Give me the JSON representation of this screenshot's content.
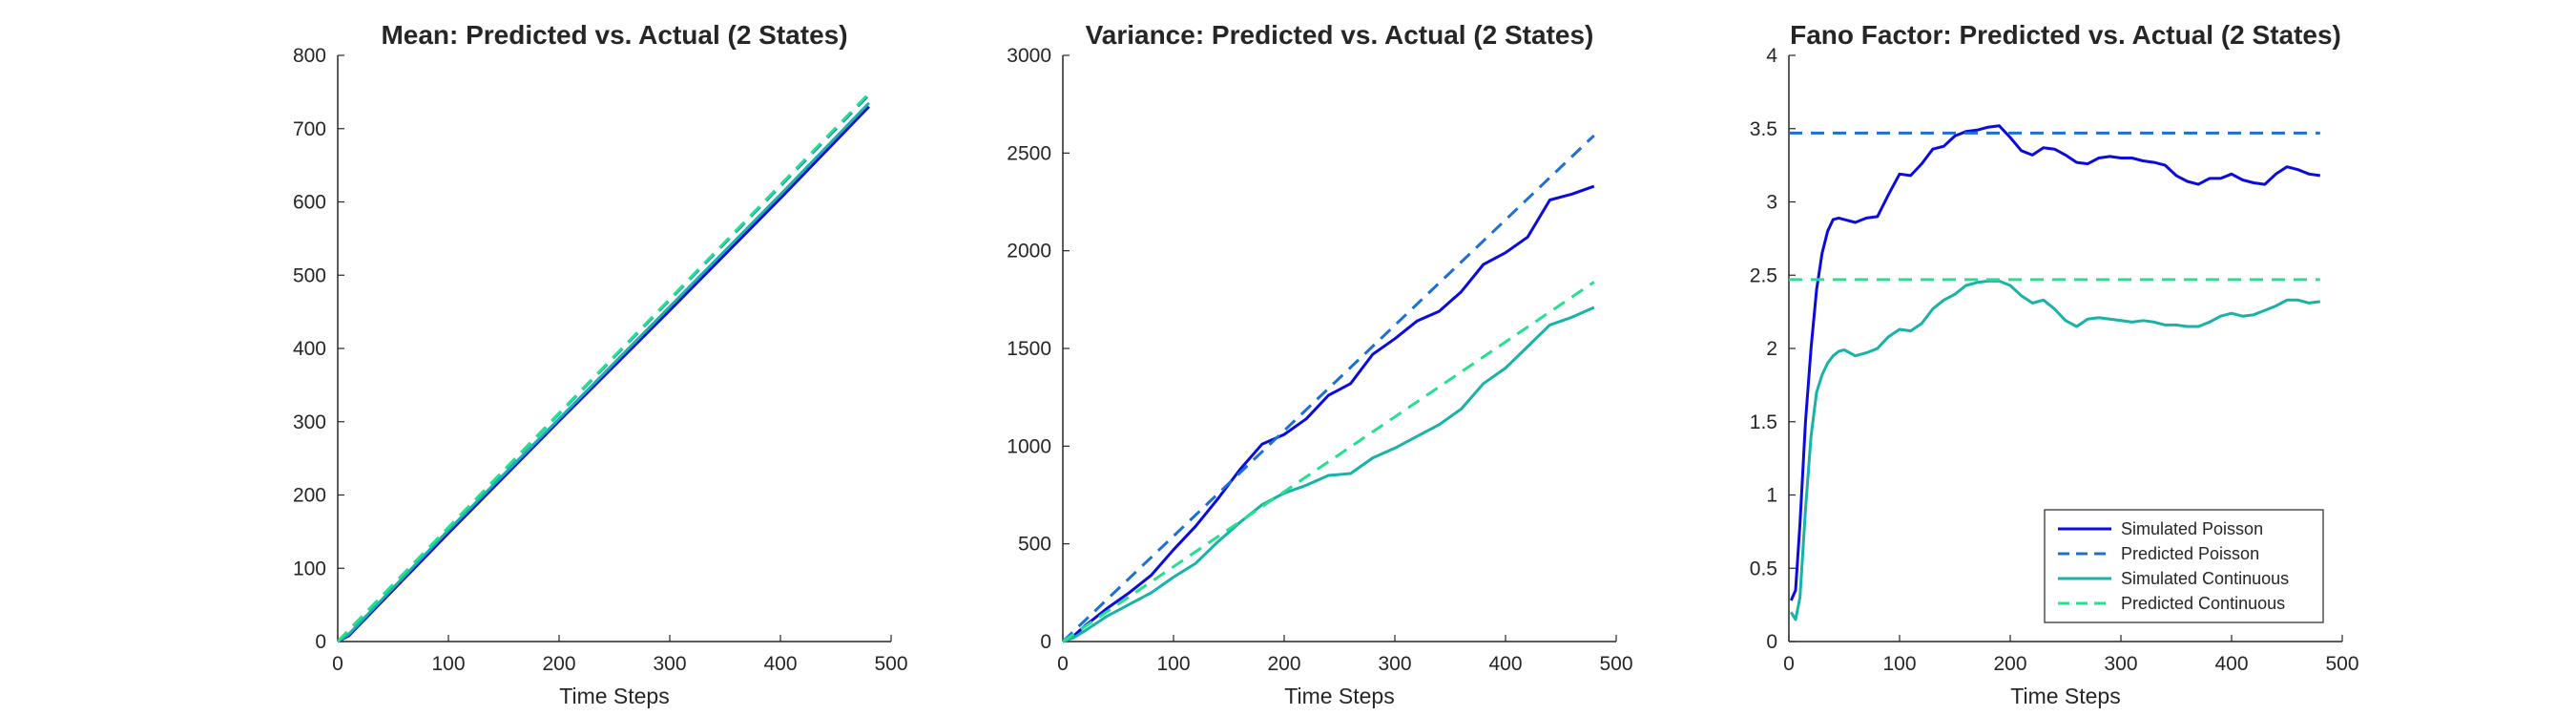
{
  "colors": {
    "simulated_poisson": "#0b0be0",
    "predicted_poisson": "#1f6fd1",
    "simulated_continuous": "#17b3a6",
    "predicted_continuous": "#25e08f",
    "axis": "#262626"
  },
  "chart_data": [
    {
      "type": "line",
      "title": "Mean: Predicted vs. Actual (2 States)",
      "xlabel": "Time Steps",
      "ylabel": "",
      "xlim": [
        0,
        500
      ],
      "ylim": [
        0,
        800
      ],
      "xticks": [
        0,
        100,
        200,
        300,
        400,
        500
      ],
      "yticks": [
        0,
        100,
        200,
        300,
        400,
        500,
        600,
        700,
        800
      ],
      "grid": false,
      "series": [
        {
          "key": "simulated_poisson",
          "dash": false,
          "x": [
            0,
            10,
            100,
            200,
            300,
            400,
            480
          ],
          "y": [
            0,
            8,
            148,
            301,
            452,
            605,
            730
          ]
        },
        {
          "key": "predicted_poisson",
          "dash": true,
          "x": [
            0,
            480
          ],
          "y": [
            0,
            746
          ]
        },
        {
          "key": "simulated_continuous",
          "dash": false,
          "x": [
            0,
            10,
            100,
            200,
            300,
            400,
            480
          ],
          "y": [
            0,
            10,
            152,
            304,
            457,
            610,
            735
          ]
        },
        {
          "key": "predicted_continuous",
          "dash": true,
          "x": [
            0,
            480
          ],
          "y": [
            0,
            748
          ]
        }
      ]
    },
    {
      "type": "line",
      "title": "Variance: Predicted vs. Actual (2 States)",
      "xlabel": "Time Steps",
      "ylabel": "",
      "xlim": [
        0,
        500
      ],
      "ylim": [
        0,
        3000
      ],
      "xticks": [
        0,
        100,
        200,
        300,
        400,
        500
      ],
      "yticks": [
        0,
        500,
        1000,
        1500,
        2000,
        2500,
        3000
      ],
      "grid": false,
      "series": [
        {
          "key": "simulated_poisson",
          "dash": false,
          "x": [
            0,
            10,
            20,
            40,
            60,
            80,
            100,
            120,
            140,
            160,
            180,
            200,
            220,
            240,
            260,
            280,
            300,
            320,
            340,
            360,
            380,
            400,
            420,
            440,
            460,
            480
          ],
          "y": [
            0,
            30,
            80,
            170,
            250,
            340,
            470,
            590,
            730,
            880,
            1010,
            1060,
            1140,
            1260,
            1320,
            1470,
            1550,
            1640,
            1690,
            1790,
            1930,
            1990,
            2070,
            2260,
            2290,
            2330
          ]
        },
        {
          "key": "predicted_poisson",
          "dash": true,
          "x": [
            0,
            480
          ],
          "y": [
            0,
            2590
          ]
        },
        {
          "key": "simulated_continuous",
          "dash": false,
          "x": [
            0,
            10,
            20,
            40,
            60,
            80,
            100,
            120,
            140,
            160,
            180,
            200,
            220,
            240,
            260,
            280,
            300,
            320,
            340,
            360,
            380,
            400,
            420,
            440,
            460,
            480
          ],
          "y": [
            0,
            20,
            55,
            130,
            190,
            250,
            330,
            400,
            510,
            610,
            700,
            760,
            800,
            850,
            860,
            940,
            990,
            1050,
            1110,
            1190,
            1320,
            1400,
            1510,
            1620,
            1660,
            1710
          ]
        },
        {
          "key": "predicted_continuous",
          "dash": true,
          "x": [
            0,
            480
          ],
          "y": [
            0,
            1840
          ]
        }
      ]
    },
    {
      "type": "line",
      "title": "Fano Factor: Predicted vs. Actual (2 States)",
      "xlabel": "Time Steps",
      "ylabel": "",
      "xlim": [
        0,
        500
      ],
      "ylim": [
        0,
        4
      ],
      "xticks": [
        0,
        100,
        200,
        300,
        400,
        500
      ],
      "yticks": [
        0,
        0.5,
        1,
        1.5,
        2,
        2.5,
        3,
        3.5,
        4
      ],
      "grid": false,
      "legend": {
        "placement": "bottom-right",
        "entries": [
          {
            "label": "Simulated Poisson",
            "key": "simulated_poisson",
            "dash": false
          },
          {
            "label": "Predicted Poisson",
            "key": "predicted_poisson",
            "dash": true
          },
          {
            "label": "Simulated Continuous",
            "key": "simulated_continuous",
            "dash": false
          },
          {
            "label": "Predicted Continuous",
            "key": "predicted_continuous",
            "dash": true
          }
        ]
      },
      "series": [
        {
          "key": "simulated_poisson",
          "dash": false,
          "x": [
            2,
            6,
            10,
            15,
            20,
            25,
            30,
            35,
            40,
            45,
            50,
            60,
            70,
            80,
            90,
            100,
            110,
            120,
            130,
            140,
            150,
            160,
            170,
            180,
            190,
            200,
            210,
            220,
            230,
            240,
            250,
            260,
            270,
            280,
            290,
            300,
            310,
            320,
            330,
            340,
            350,
            360,
            370,
            380,
            390,
            400,
            410,
            420,
            430,
            440,
            450,
            460,
            470,
            480
          ],
          "y": [
            0.28,
            0.35,
            0.8,
            1.5,
            2.0,
            2.4,
            2.65,
            2.8,
            2.88,
            2.89,
            2.88,
            2.86,
            2.89,
            2.9,
            3.05,
            3.19,
            3.18,
            3.26,
            3.36,
            3.38,
            3.45,
            3.48,
            3.49,
            3.51,
            3.52,
            3.44,
            3.35,
            3.32,
            3.37,
            3.36,
            3.32,
            3.27,
            3.26,
            3.3,
            3.31,
            3.3,
            3.3,
            3.28,
            3.27,
            3.25,
            3.18,
            3.14,
            3.12,
            3.16,
            3.16,
            3.19,
            3.15,
            3.13,
            3.12,
            3.19,
            3.24,
            3.22,
            3.19,
            3.18
          ]
        },
        {
          "key": "predicted_poisson",
          "dash": true,
          "x": [
            0,
            480
          ],
          "y": [
            3.47,
            3.47
          ]
        },
        {
          "key": "simulated_continuous",
          "dash": false,
          "x": [
            2,
            6,
            10,
            15,
            20,
            25,
            30,
            35,
            40,
            45,
            50,
            60,
            70,
            80,
            90,
            100,
            110,
            120,
            130,
            140,
            150,
            160,
            170,
            180,
            190,
            200,
            210,
            220,
            230,
            240,
            250,
            260,
            270,
            280,
            290,
            300,
            310,
            320,
            330,
            340,
            350,
            360,
            370,
            380,
            390,
            400,
            410,
            420,
            430,
            440,
            450,
            460,
            470,
            480
          ],
          "y": [
            0.2,
            0.15,
            0.3,
            0.9,
            1.4,
            1.7,
            1.82,
            1.9,
            1.95,
            1.98,
            1.99,
            1.95,
            1.97,
            2.0,
            2.08,
            2.13,
            2.12,
            2.17,
            2.27,
            2.33,
            2.37,
            2.43,
            2.45,
            2.46,
            2.46,
            2.43,
            2.36,
            2.31,
            2.33,
            2.27,
            2.19,
            2.15,
            2.2,
            2.21,
            2.2,
            2.19,
            2.18,
            2.19,
            2.18,
            2.16,
            2.16,
            2.15,
            2.15,
            2.18,
            2.22,
            2.24,
            2.22,
            2.23,
            2.26,
            2.29,
            2.33,
            2.33,
            2.31,
            2.32
          ]
        },
        {
          "key": "predicted_continuous",
          "dash": true,
          "x": [
            0,
            480
          ],
          "y": [
            2.47,
            2.47
          ]
        }
      ]
    }
  ]
}
